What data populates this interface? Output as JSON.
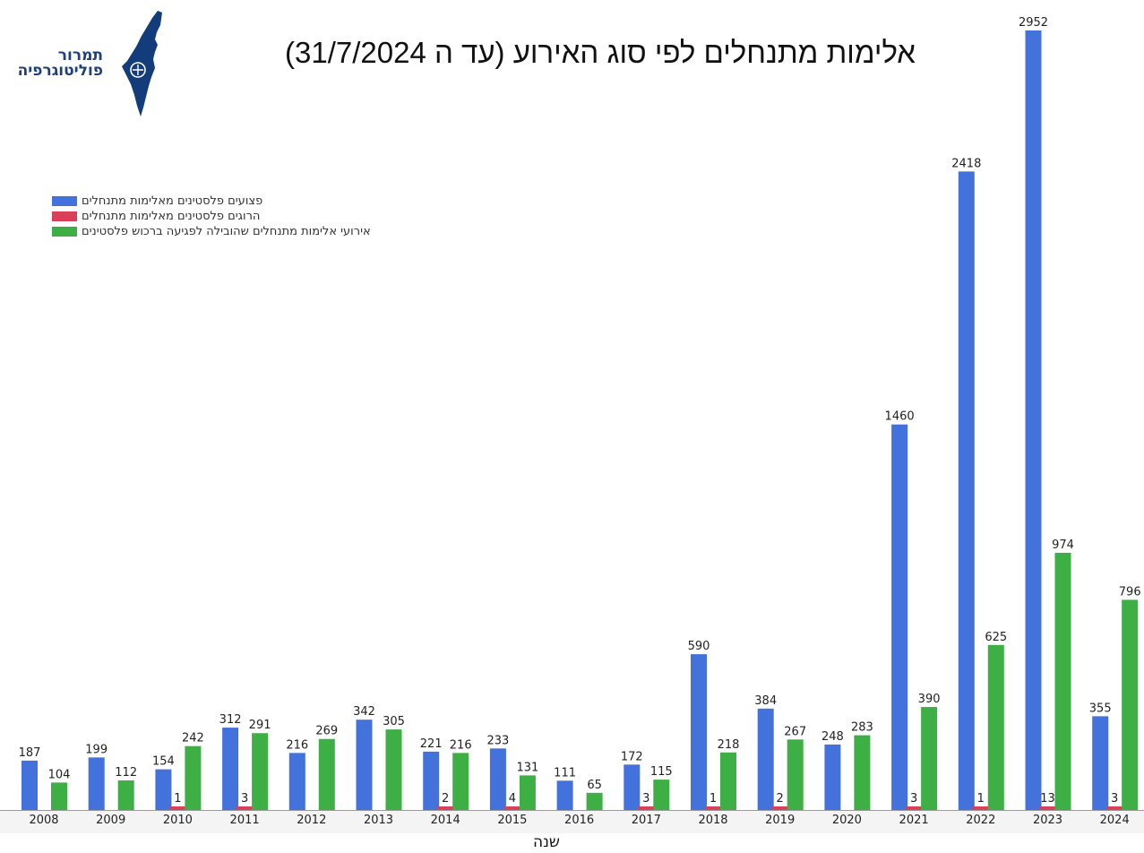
{
  "logo": {
    "line1": "תמרור",
    "line2": "פוליטוגרפיה"
  },
  "chart_data": {
    "type": "bar",
    "title": "אלימות מתנחלים לפי סוג האירוע (עד ה 31/7/2024)",
    "xlabel": "שנה",
    "ylabel": "",
    "ylim": [
      0,
      2952
    ],
    "grid": false,
    "legend_position": "top-left",
    "categories": [
      "2008",
      "2009",
      "2010",
      "2011",
      "2012",
      "2013",
      "2014",
      "2015",
      "2016",
      "2017",
      "2018",
      "2019",
      "2020",
      "2021",
      "2022",
      "2023",
      "2024"
    ],
    "series": [
      {
        "name": "פצועים פלסטינים מאלימות מתנחלים",
        "color": "#4472dc",
        "values": [
          187,
          199,
          154,
          312,
          216,
          342,
          221,
          233,
          111,
          172,
          590,
          384,
          248,
          1460,
          2418,
          2952,
          355
        ]
      },
      {
        "name": "הרוגים פלסטינים מאלימות מתנחלים",
        "color": "#d9415a",
        "values": [
          null,
          null,
          1,
          3,
          null,
          null,
          2,
          4,
          null,
          3,
          1,
          2,
          null,
          3,
          1,
          13,
          3
        ]
      },
      {
        "name": "אירועי אלימות מתנחלים שהובילה לפגיעה ברכוש פלסטינים",
        "color": "#3daf45",
        "values": [
          104,
          112,
          242,
          291,
          269,
          305,
          216,
          131,
          65,
          115,
          218,
          267,
          283,
          390,
          625,
          974,
          796
        ]
      }
    ]
  }
}
